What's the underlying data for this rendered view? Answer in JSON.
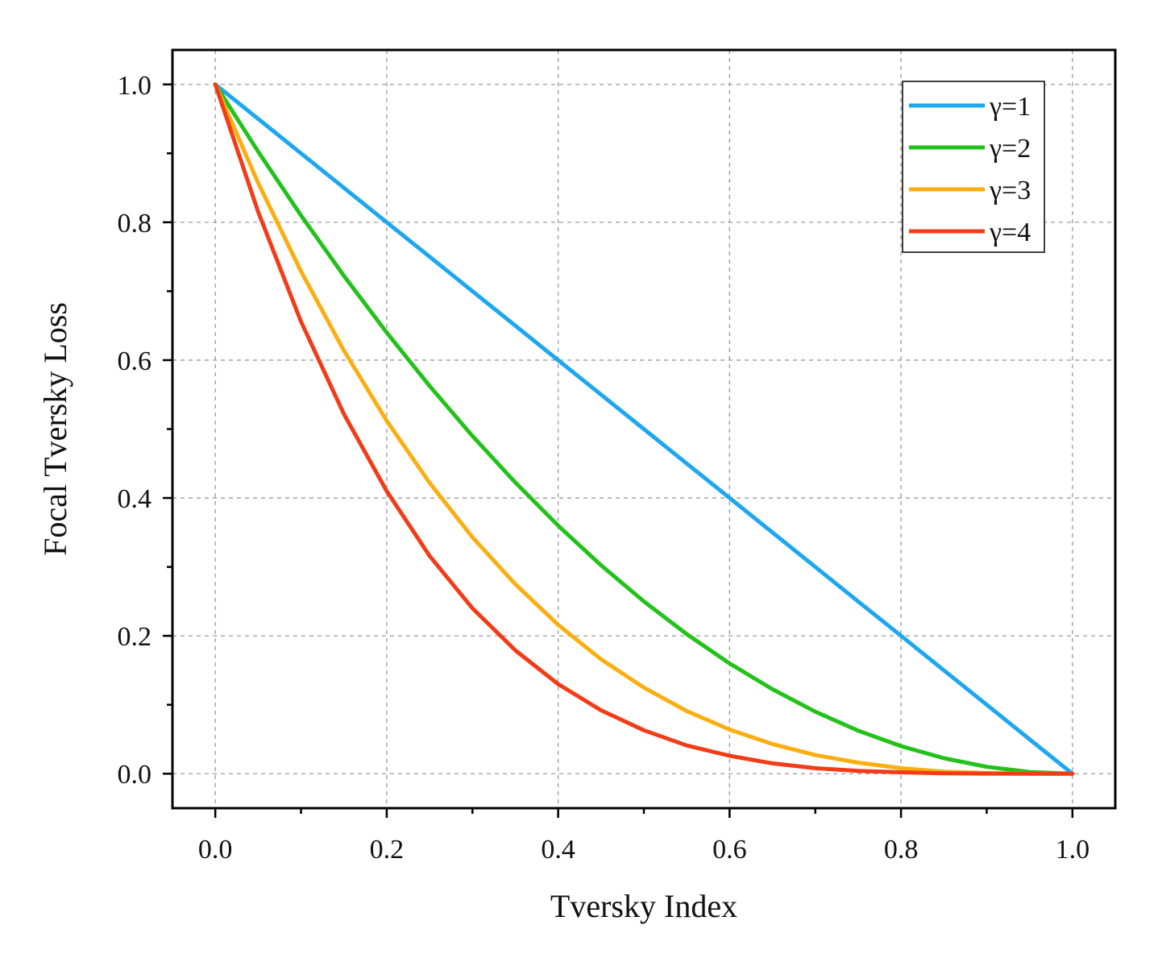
{
  "chart_data": {
    "type": "line",
    "title": "",
    "xlabel": "Tversky Index",
    "ylabel": "Focal Tversky Loss",
    "xlim": [
      -0.05,
      1.05
    ],
    "ylim": [
      -0.05,
      1.05
    ],
    "xticks": [
      0.0,
      0.2,
      0.4,
      0.6,
      0.8,
      1.0
    ],
    "yticks": [
      0.0,
      0.2,
      0.4,
      0.6,
      0.8,
      1.0
    ],
    "xtick_labels": [
      "0.0",
      "0.2",
      "0.4",
      "0.6",
      "0.8",
      "1.0"
    ],
    "ytick_labels": [
      "0.0",
      "0.2",
      "0.4",
      "0.6",
      "0.8",
      "1.0"
    ],
    "grid": true,
    "legend_position": "top-right",
    "x": [
      0.0,
      0.05,
      0.1,
      0.15,
      0.2,
      0.25,
      0.3,
      0.35,
      0.4,
      0.45,
      0.5,
      0.55,
      0.6,
      0.65,
      0.7,
      0.75,
      0.8,
      0.85,
      0.9,
      0.95,
      1.0
    ],
    "series": [
      {
        "name": "γ=1",
        "color": "#1ea7ef",
        "values": [
          1.0,
          0.95,
          0.9,
          0.85,
          0.8,
          0.75,
          0.7,
          0.65,
          0.6,
          0.55,
          0.5,
          0.45,
          0.4,
          0.35,
          0.3,
          0.25,
          0.2,
          0.15,
          0.1,
          0.05,
          0.0
        ]
      },
      {
        "name": "γ=2",
        "color": "#22c21a",
        "values": [
          1.0,
          0.9025,
          0.81,
          0.7225,
          0.64,
          0.5625,
          0.49,
          0.4225,
          0.36,
          0.3025,
          0.25,
          0.2025,
          0.16,
          0.1225,
          0.09,
          0.0625,
          0.04,
          0.0225,
          0.01,
          0.0025,
          0.0
        ]
      },
      {
        "name": "γ=3",
        "color": "#fbae10",
        "values": [
          1.0,
          0.857,
          0.729,
          0.614,
          0.512,
          0.422,
          0.343,
          0.275,
          0.216,
          0.166,
          0.125,
          0.091,
          0.064,
          0.043,
          0.027,
          0.016,
          0.008,
          0.003,
          0.001,
          0.0001,
          0.0
        ]
      },
      {
        "name": "γ=4",
        "color": "#f23c17",
        "values": [
          1.0,
          0.815,
          0.656,
          0.522,
          0.41,
          0.316,
          0.24,
          0.179,
          0.13,
          0.092,
          0.063,
          0.041,
          0.026,
          0.015,
          0.008,
          0.004,
          0.002,
          0.0005,
          0.0001,
          0.0,
          0.0
        ]
      }
    ]
  }
}
